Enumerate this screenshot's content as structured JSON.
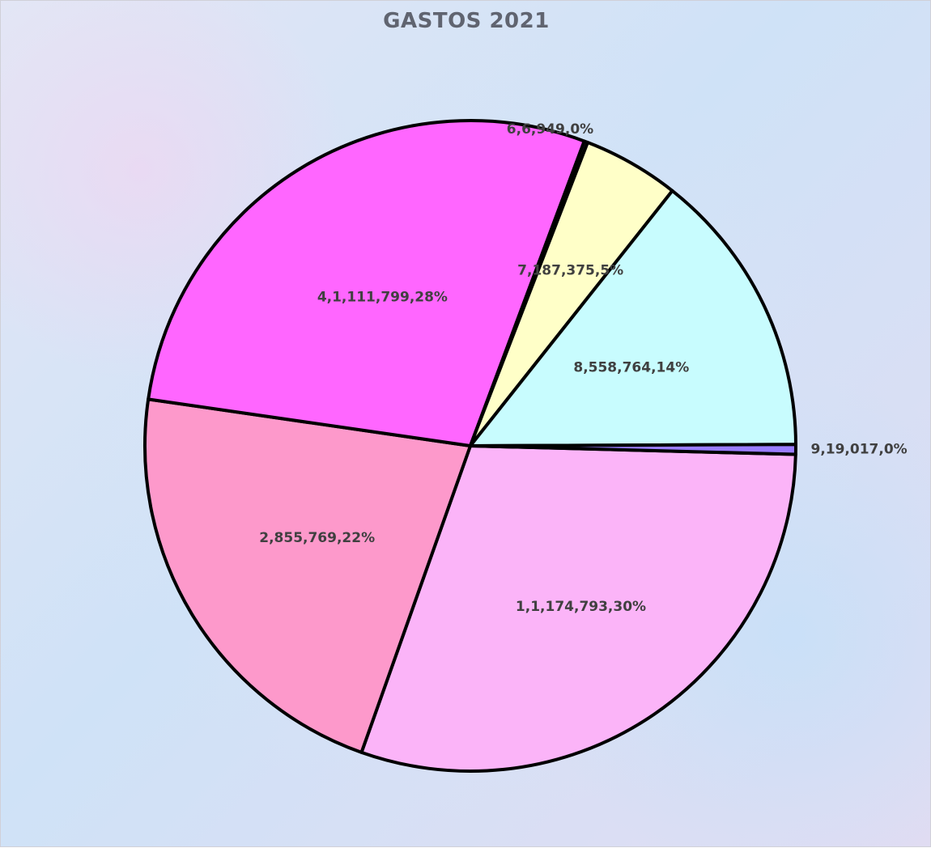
{
  "chart_data": {
    "type": "pie",
    "title": "GASTOS 2021",
    "slices": [
      {
        "label": "1,1,174,793,30%",
        "value": 1174793,
        "color": "#FBB4F8"
      },
      {
        "label": "2,855,769,22%",
        "value": 855769,
        "color": "#FD99CB"
      },
      {
        "label": "4,1,111,799,28%",
        "value": 1111799,
        "color": "#FF66FF"
      },
      {
        "label": "6,6,949,0%",
        "value": 6949,
        "color": "#2A2A2A"
      },
      {
        "label": "7,187,375,5%",
        "value": 187375,
        "color": "#FFFFC8"
      },
      {
        "label": "8,558,764,14%",
        "value": 558764,
        "color": "#C8FCFE"
      },
      {
        "label": "9,19,017,0%",
        "value": 19017,
        "color": "#9A7CFF"
      }
    ],
    "legend": "none"
  }
}
